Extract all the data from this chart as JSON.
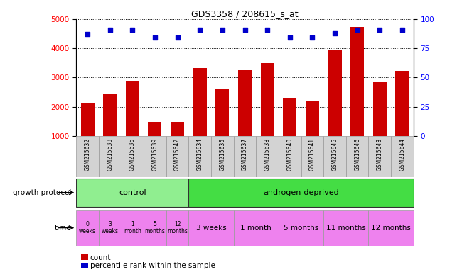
{
  "title": "GDS3358 / 208615_s_at",
  "samples": [
    "GSM215632",
    "GSM215633",
    "GSM215636",
    "GSM215639",
    "GSM215642",
    "GSM215634",
    "GSM215635",
    "GSM215637",
    "GSM215638",
    "GSM215640",
    "GSM215641",
    "GSM215645",
    "GSM215646",
    "GSM215643",
    "GSM215644"
  ],
  "counts": [
    2150,
    2420,
    2870,
    1480,
    1480,
    3320,
    2600,
    3250,
    3490,
    2280,
    2220,
    3930,
    4720,
    2840,
    3240
  ],
  "percentile_ranks": [
    87,
    91,
    91,
    84,
    84,
    91,
    91,
    91,
    91,
    84,
    84,
    88,
    91,
    91,
    91
  ],
  "bar_color": "#cc0000",
  "dot_color": "#0000cc",
  "ylim_left": [
    1000,
    5000
  ],
  "ylim_right": [
    0,
    100
  ],
  "yticks_left": [
    1000,
    2000,
    3000,
    4000,
    5000
  ],
  "yticks_right": [
    0,
    25,
    50,
    75,
    100
  ],
  "control_color": "#90ee90",
  "androgen_color": "#44dd44",
  "time_color": "#ee82ee",
  "time_labels_control": [
    "0\nweeks",
    "3\nweeks",
    "1\nmonth",
    "5\nmonths",
    "12\nmonths"
  ],
  "time_labels_androgen": [
    "3 weeks",
    "1 month",
    "5 months",
    "11 months",
    "12 months"
  ],
  "androgen_time_widths": [
    2,
    2,
    2,
    2,
    2
  ],
  "growth_protocol_label": "growth protocol",
  "time_label": "time",
  "legend_count": "count",
  "legend_pct": "percentile rank within the sample",
  "background_color": "#ffffff",
  "sample_bg_color": "#d3d3d3",
  "chart_bg_color": "#ffffff"
}
